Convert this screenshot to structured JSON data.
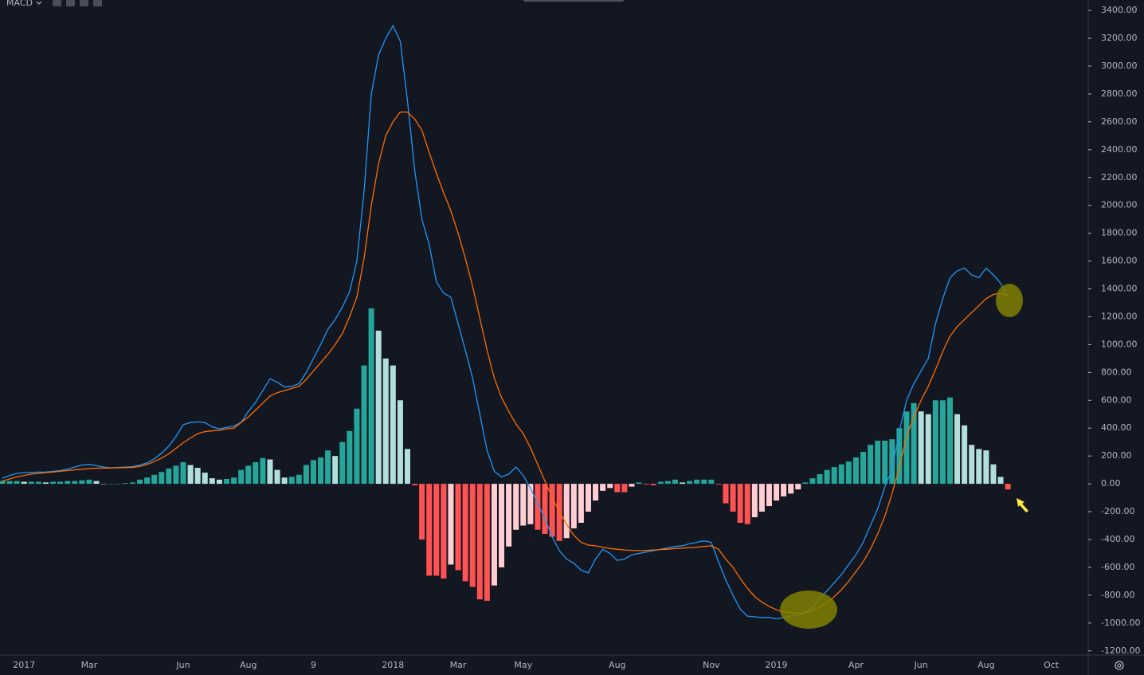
{
  "chart_data": {
    "type": "macd",
    "title": "MACD",
    "categories": [
      null,
      null,
      null,
      "2017",
      null,
      null,
      null,
      null,
      null,
      null,
      null,
      null,
      "Mar",
      null,
      null,
      null,
      null,
      null,
      null,
      null,
      null,
      null,
      null,
      null,
      null,
      "Jun",
      null,
      null,
      null,
      null,
      null,
      null,
      null,
      null,
      "Aug",
      null,
      null,
      null,
      null,
      null,
      null,
      null,
      null,
      "9",
      null,
      null,
      null,
      null,
      null,
      null,
      null,
      null,
      null,
      null,
      "2018",
      null,
      null,
      null,
      null,
      null,
      null,
      null,
      null,
      "Mar",
      null,
      null,
      null,
      null,
      null,
      null,
      null,
      null,
      "May",
      null,
      null,
      null,
      null,
      null,
      null,
      null,
      null,
      null,
      null,
      null,
      null,
      "Aug",
      null,
      null,
      null,
      null,
      null,
      null,
      null,
      null,
      null,
      null,
      null,
      null,
      "Nov",
      null,
      null,
      null,
      null,
      null,
      null,
      null,
      null,
      "2019",
      null,
      null,
      null,
      null,
      null,
      null,
      null,
      null,
      null,
      null,
      "Apr",
      null,
      null,
      null,
      null,
      null,
      null,
      null,
      null,
      "Jun",
      null,
      null,
      null,
      null,
      null,
      null,
      null,
      null,
      "Aug",
      null,
      null,
      null,
      null,
      null,
      null,
      null,
      null,
      "Oct"
    ],
    "series": [
      {
        "color": "#2196f3",
        "values": [
          40,
          60,
          75,
          80,
          82,
          84,
          85,
          90,
          95,
          105,
          120,
          135,
          140,
          130,
          120,
          115,
          118,
          120,
          123,
          135,
          150,
          180,
          220,
          270,
          340,
          425,
          440,
          445,
          440,
          410,
          395,
          405,
          415,
          440,
          520,
          585,
          670,
          755,
          730,
          695,
          700,
          720,
          800,
          900,
          1000,
          1110,
          1180,
          1270,
          1380,
          1600,
          2100,
          2800,
          3080,
          3200,
          3290,
          3180,
          2750,
          2250,
          1900,
          1720,
          1450,
          1370,
          1340,
          1150,
          960,
          760,
          500,
          240,
          90,
          50,
          70,
          120,
          60,
          -30,
          -140,
          -250,
          -380,
          -480,
          -540,
          -570,
          -620,
          -640,
          -540,
          -470,
          -500,
          -550,
          -540,
          -510,
          -500,
          -490,
          -480,
          -470,
          -460,
          -450,
          -445,
          -430,
          -420,
          -410,
          -420,
          -560,
          -690,
          -800,
          -900,
          -950,
          -955,
          -960,
          -960,
          -970,
          -960,
          -950,
          -945,
          -920,
          -890,
          -820,
          -770,
          -710,
          -650,
          -580,
          -510,
          -420,
          -300,
          -180,
          -20,
          100,
          380,
          600,
          720,
          810,
          900,
          1150,
          1330,
          1480,
          1530,
          1550,
          1500,
          1480,
          1550,
          1500,
          1440,
          1340,
          null,
          null,
          null,
          null,
          null,
          null
        ]
      },
      {
        "color": "#ff6d00",
        "values": [
          20,
          35,
          50,
          60,
          70,
          75,
          80,
          85,
          90,
          95,
          100,
          105,
          110,
          112,
          113,
          114,
          115,
          116,
          118,
          125,
          140,
          160,
          185,
          215,
          255,
          295,
          330,
          360,
          375,
          380,
          385,
          395,
          400,
          440,
          480,
          530,
          580,
          630,
          655,
          670,
          685,
          700,
          750,
          810,
          870,
          930,
          1000,
          1080,
          1200,
          1340,
          1620,
          2000,
          2300,
          2500,
          2600,
          2670,
          2670,
          2620,
          2540,
          2380,
          2230,
          2090,
          1960,
          1800,
          1620,
          1420,
          1190,
          960,
          760,
          620,
          520,
          430,
          360,
          260,
          140,
          20,
          -100,
          -200,
          -290,
          -370,
          -420,
          -440,
          -445,
          -455,
          -465,
          -470,
          -475,
          -478,
          -480,
          -478,
          -475,
          -472,
          -470,
          -465,
          -462,
          -458,
          -455,
          -450,
          -445,
          -470,
          -540,
          -600,
          -680,
          -750,
          -810,
          -850,
          -880,
          -905,
          -920,
          -925,
          -930,
          -925,
          -910,
          -885,
          -855,
          -810,
          -760,
          -700,
          -630,
          -560,
          -470,
          -360,
          -230,
          -70,
          120,
          340,
          480,
          600,
          700,
          820,
          950,
          1060,
          1130,
          1180,
          1230,
          1280,
          1330,
          1360,
          1370,
          1350,
          null,
          null,
          null,
          null,
          null,
          null
        ]
      }
    ],
    "histogram": {
      "colors": [
        "#26a69a",
        "#b2dfdb",
        "#ff5252",
        "#ffcdd2"
      ],
      "values": [
        20,
        20,
        20,
        15,
        15,
        15,
        10,
        15,
        15,
        20,
        20,
        25,
        30,
        20,
        0,
        0,
        0,
        5,
        10,
        30,
        45,
        65,
        85,
        110,
        130,
        155,
        135,
        115,
        80,
        40,
        30,
        35,
        45,
        100,
        130,
        155,
        185,
        175,
        100,
        45,
        50,
        65,
        135,
        170,
        190,
        240,
        200,
        300,
        380,
        540,
        850,
        1260,
        1100,
        900,
        850,
        600,
        250,
        -10,
        -400,
        -660,
        -660,
        -680,
        -580,
        -620,
        -700,
        -740,
        -830,
        -840,
        -730,
        -600,
        -450,
        -330,
        -300,
        -290,
        -330,
        -360,
        -380,
        -410,
        -390,
        -320,
        -280,
        -200,
        -120,
        -50,
        -30,
        -60,
        -60,
        -20,
        10,
        -5,
        -10,
        15,
        20,
        30,
        10,
        20,
        30,
        30,
        30,
        -5,
        -140,
        -200,
        -280,
        -290,
        -240,
        -200,
        -160,
        -120,
        -90,
        -70,
        -40,
        10,
        40,
        70,
        100,
        120,
        140,
        160,
        190,
        230,
        280,
        310,
        310,
        320,
        400,
        520,
        580,
        520,
        500,
        600,
        600,
        620,
        500,
        420,
        280,
        250,
        240,
        140,
        50,
        -40,
        null,
        null,
        null,
        null,
        null,
        null
      ]
    },
    "ylim": [
      -1230,
      3475
    ],
    "yticks": [
      {
        "value": 3400,
        "label": "3400.00"
      },
      {
        "value": 3200,
        "label": "3200.00"
      },
      {
        "value": 3000,
        "label": "3000.00"
      },
      {
        "value": 2800,
        "label": "2800.00"
      },
      {
        "value": 2600,
        "label": "2600.00"
      },
      {
        "value": 2400,
        "label": "2400.00"
      },
      {
        "value": 2200,
        "label": "2200.00"
      },
      {
        "value": 2000,
        "label": "2000.00"
      },
      {
        "value": 1800,
        "label": "1800.00"
      },
      {
        "value": 1600,
        "label": "1600.00"
      },
      {
        "value": 1400,
        "label": "1400.00"
      },
      {
        "value": 1200,
        "label": "1200.00"
      },
      {
        "value": 1000,
        "label": "1000.00"
      },
      {
        "value": 800,
        "label": "800.00"
      },
      {
        "value": 600,
        "label": "600.00"
      },
      {
        "value": 400,
        "label": "400.00"
      },
      {
        "value": 200,
        "label": "200.00"
      },
      {
        "value": 0,
        "label": "0.00"
      },
      {
        "value": -200,
        "label": "-200.00"
      },
      {
        "value": -400,
        "label": "-400.00"
      },
      {
        "value": -600,
        "label": "-600.00"
      },
      {
        "value": -800,
        "label": "-800.00"
      },
      {
        "value": -1000,
        "label": "-1000.00"
      },
      {
        "value": -1200,
        "label": "-1200.00"
      }
    ],
    "grid": false
  }
}
